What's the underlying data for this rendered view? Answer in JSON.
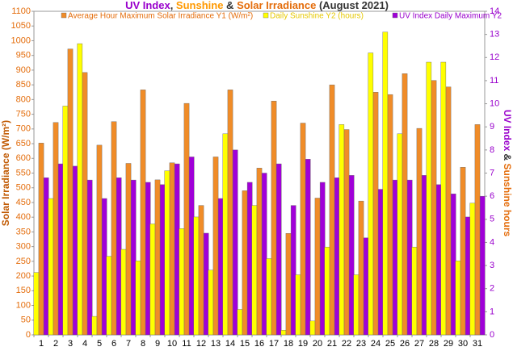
{
  "chart_data": {
    "type": "bar",
    "title_parts": [
      {
        "text": "UV Index",
        "color": "#9900cc"
      },
      {
        "text": ", ",
        "color": "#333333"
      },
      {
        "text": "Sunshine",
        "color": "#ff9900"
      },
      {
        "text": " & ",
        "color": "#333333"
      },
      {
        "text": "Solar Irradiance",
        "color": "#e46c0a"
      },
      {
        "text": "  (August 2021)",
        "color": "#333333"
      }
    ],
    "y_label": "Solar Irradiance (W/m²)",
    "y_label_color": "#c05800",
    "y2_label_parts": [
      {
        "text": "UV Index",
        "color": "#9900cc"
      },
      {
        "text": " & ",
        "color": "#333333"
      },
      {
        "text": "Sunshine hours",
        "color": "#e46c0a"
      }
    ],
    "categories": [
      "1",
      "2",
      "3",
      "4",
      "5",
      "6",
      "7",
      "8",
      "9",
      "10",
      "11",
      "12",
      "13",
      "14",
      "15",
      "16",
      "17",
      "18",
      "19",
      "20",
      "21",
      "22",
      "23",
      "24",
      "25",
      "26",
      "27",
      "28",
      "29",
      "30",
      "31"
    ],
    "series": [
      {
        "name": "Average Hour Maximum Solar Irradiance Y1 (W/m²)",
        "color": "#f08c28",
        "text_color": "#e46c0a",
        "values": [
          652,
          722,
          972,
          892,
          645,
          725,
          583,
          833,
          527,
          585,
          787,
          440,
          605,
          833,
          490,
          567,
          795,
          345,
          720,
          465,
          850,
          698,
          455,
          825,
          817,
          888,
          702,
          865,
          843,
          570,
          715
        ]
      },
      {
        "name": "Daily Sunshine Y2 (hours)",
        "color": "#ffff00",
        "text_color": "#e6c800",
        "axis": "y2",
        "values": [
          2.7,
          5.9,
          9.9,
          12.6,
          0.8,
          3.4,
          3.7,
          3.2,
          4.8,
          7.1,
          4.6,
          5.1,
          2.8,
          8.7,
          1.1,
          5.6,
          3.3,
          0.2,
          2.6,
          0.6,
          3.8,
          9.1,
          2.6,
          12.2,
          13.1,
          8.7,
          3.8,
          11.8,
          11.8,
          3.2,
          5.7
        ]
      },
      {
        "name": "UV Index Daily Maximum Y2",
        "color": "#a000d8",
        "text_color": "#9900cc",
        "axis": "y2",
        "values": [
          6.8,
          7.4,
          7.3,
          6.7,
          5.9,
          6.8,
          6.7,
          6.6,
          6.5,
          7.4,
          7.7,
          4.4,
          5.9,
          8.0,
          6.6,
          7.0,
          7.4,
          5.6,
          7.6,
          6.6,
          6.8,
          6.9,
          4.2,
          6.3,
          6.7,
          6.7,
          6.9,
          6.5,
          6.1,
          5.1,
          6.0
        ]
      }
    ],
    "ylim": [
      0,
      1100
    ],
    "yticks": [
      0,
      50,
      100,
      150,
      200,
      250,
      300,
      350,
      400,
      450,
      500,
      550,
      600,
      650,
      700,
      750,
      800,
      850,
      900,
      950,
      1000,
      1050,
      1100
    ],
    "y2lim": [
      0,
      14
    ],
    "y2ticks": [
      0,
      1,
      2,
      3,
      4,
      5,
      6,
      7,
      8,
      9,
      10,
      11,
      12,
      13,
      14
    ],
    "ytick_color": "#e46c0a",
    "y2tick_color": "#9900cc",
    "grid": false
  }
}
